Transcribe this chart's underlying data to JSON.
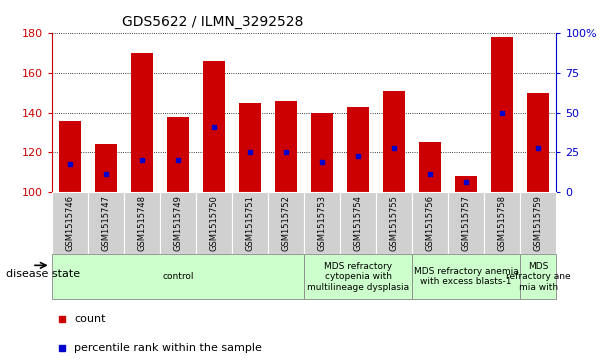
{
  "title": "GDS5622 / ILMN_3292528",
  "samples": [
    "GSM1515746",
    "GSM1515747",
    "GSM1515748",
    "GSM1515749",
    "GSM1515750",
    "GSM1515751",
    "GSM1515752",
    "GSM1515753",
    "GSM1515754",
    "GSM1515755",
    "GSM1515756",
    "GSM1515757",
    "GSM1515758",
    "GSM1515759"
  ],
  "counts": [
    136,
    124,
    170,
    138,
    166,
    145,
    146,
    140,
    143,
    151,
    125,
    108,
    178,
    150
  ],
  "percentile_values": [
    114,
    109,
    116,
    116,
    133,
    120,
    120,
    115,
    118,
    122,
    109,
    105,
    140,
    122
  ],
  "ymin": 100,
  "ymax": 180,
  "yticks_left": [
    100,
    120,
    140,
    160,
    180
  ],
  "yticks_right": [
    0,
    25,
    50,
    75,
    100
  ],
  "bar_color": "#cc0000",
  "percentile_color": "#0000cc",
  "background_color": "#ffffff",
  "tick_bg_color": "#d0d0d0",
  "disease_groups": [
    {
      "label": "control",
      "start": 0,
      "end": 7
    },
    {
      "label": "MDS refractory\ncytopenia with\nmultilineage dysplasia",
      "start": 7,
      "end": 10
    },
    {
      "label": "MDS refractory anemia\nwith excess blasts-1",
      "start": 10,
      "end": 13
    },
    {
      "label": "MDS\nrefractory ane\nmia with",
      "start": 13,
      "end": 14
    }
  ],
  "disease_group_color": "#ccffcc",
  "disease_group_border": "#888888",
  "legend_count": "count",
  "legend_percentile": "percentile rank within the sample",
  "bar_width": 0.6
}
